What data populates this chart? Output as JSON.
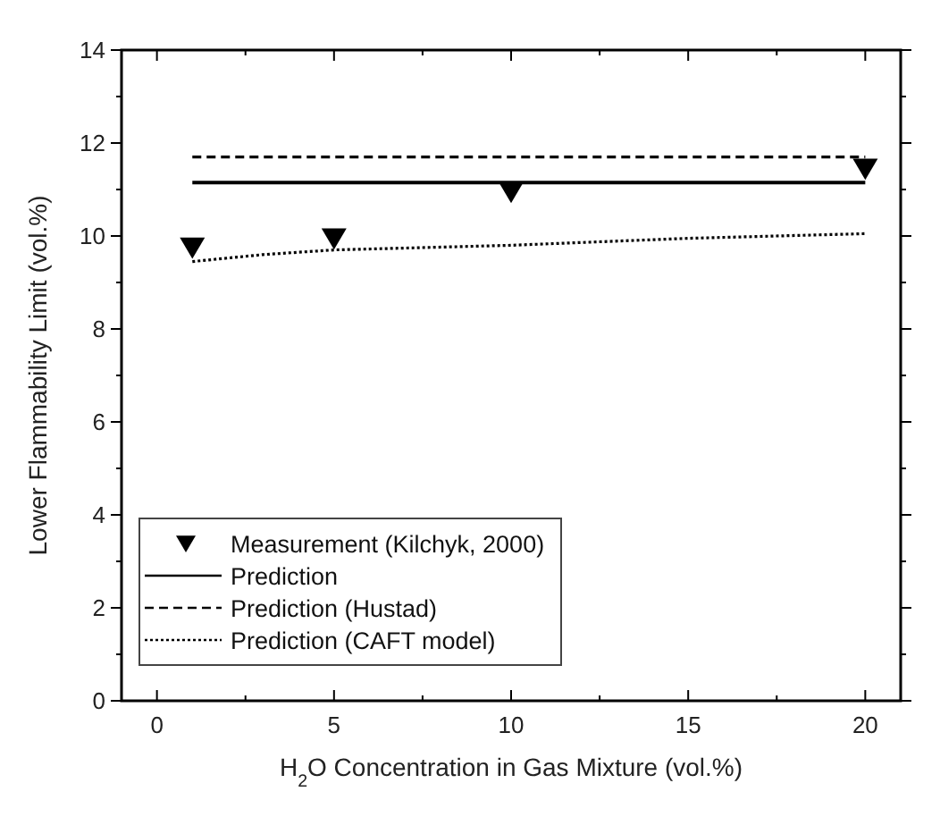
{
  "chart_data": {
    "type": "line",
    "xlabel": "H$_{2}$O Concentration in Gas Mixture (vol.%)",
    "ylabel": "Lower Flammability Limit (vol.%)",
    "xlim": [
      -1,
      21
    ],
    "ylim": [
      0,
      14
    ],
    "xticks": [
      0,
      {
        "value": 2.5,
        "label": null
      },
      5,
      {
        "value": 7.5,
        "label": null
      },
      10,
      {
        "value": 12.5,
        "label": null
      },
      15,
      {
        "value": 17.5,
        "label": null
      },
      20
    ],
    "yticks": [
      0,
      {
        "value": 1,
        "label": null
      },
      2,
      {
        "value": 3,
        "label": null
      },
      4,
      {
        "value": 5,
        "label": null
      },
      6,
      {
        "value": 7,
        "label": null
      },
      8,
      {
        "value": 9,
        "label": null
      },
      10,
      {
        "value": 11,
        "label": null
      },
      12,
      {
        "value": 13,
        "label": null
      },
      14
    ],
    "legend": "bottom left",
    "grid": false,
    "series": [
      {
        "type": "scatter",
        "name": "Measurement (Kilchyk, 2000)",
        "color": "#000000",
        "marker": "triangle",
        "x": [
          1,
          5,
          10,
          20
        ],
        "values": [
          9.75,
          9.95,
          10.95,
          11.45
        ]
      },
      {
        "name": "Prediction",
        "color": "#000000",
        "line_style": "solid",
        "x": [
          1,
          20
        ],
        "values": [
          11.15,
          11.15
        ]
      },
      {
        "name": "Prediction (Hustad)",
        "color": "#000000",
        "line_style": "dashed",
        "x": [
          1,
          20
        ],
        "values": [
          11.7,
          11.7
        ]
      },
      {
        "name": "Prediction (CAFT model)",
        "color": "#000000",
        "line_style": "dotted",
        "x": [
          1,
          3,
          5,
          10,
          15,
          20
        ],
        "values": [
          9.45,
          9.6,
          9.7,
          9.8,
          9.95,
          10.05
        ]
      }
    ]
  }
}
